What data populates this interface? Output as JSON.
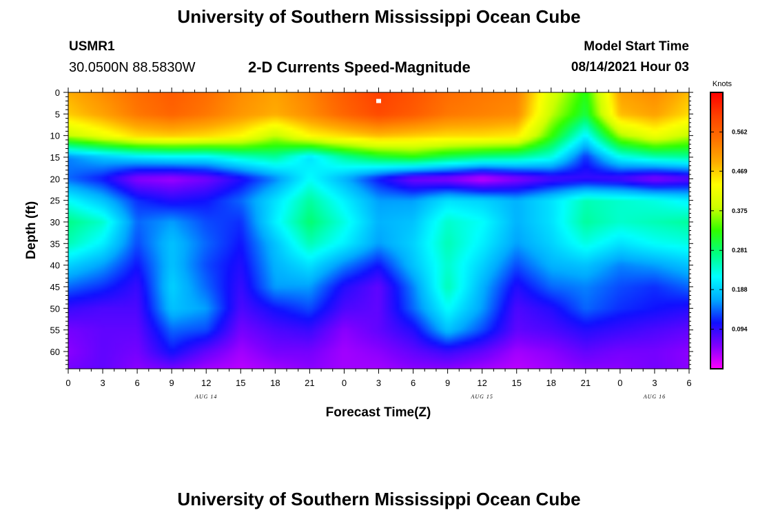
{
  "header": {
    "title": "University of Southern Mississippi Ocean Cube",
    "station_id": "USMR1",
    "station_coords": "30.0500N  88.5830W",
    "product_title": "2-D Currents Speed-Magnitude",
    "model_start_label": "Model Start Time",
    "model_start_value": "08/14/2021 Hour 03"
  },
  "footer": {
    "title": "University of Southern Mississippi Ocean Cube"
  },
  "chart_data": {
    "type": "heatmap",
    "xlabel": "Forecast Time(Z)",
    "ylabel": "Depth (ft)",
    "x_hours_range": [
      0,
      54
    ],
    "ylim": [
      0,
      64
    ],
    "y_inverted": true,
    "x_tick_labels": [
      "0",
      "3",
      "6",
      "9",
      "12",
      "15",
      "18",
      "21",
      "0",
      "3",
      "6",
      "9",
      "12",
      "15",
      "18",
      "21",
      "0",
      "3",
      "6"
    ],
    "y_tick_labels": [
      "0",
      "5",
      "10",
      "15",
      "20",
      "25",
      "30",
      "35",
      "40",
      "45",
      "50",
      "55",
      "60"
    ],
    "date_labels": [
      {
        "text": "AUG  14",
        "hour": 12
      },
      {
        "text": "AUG  15",
        "hour": 36
      },
      {
        "text": "AUG  16",
        "hour": 51
      }
    ],
    "marker": {
      "hour": 27,
      "depth": 2
    },
    "colorbar": {
      "unit_label": "Knots",
      "range": [
        0.0,
        0.656
      ],
      "tick_values": [
        "0.562",
        "0.469",
        "0.375",
        "0.281",
        "0.188",
        "0.094"
      ],
      "colors": [
        "#ff00ff",
        "#8000ff",
        "#1010ff",
        "#00aaff",
        "#00ffff",
        "#00ff80",
        "#30ff00",
        "#ccff00",
        "#ffff00",
        "#ffaa00",
        "#ff7000",
        "#ff4000",
        "#ff0000"
      ]
    },
    "grid": false,
    "depths_ft": [
      0,
      5,
      10,
      15,
      20,
      25,
      30,
      35,
      40,
      45,
      50,
      55,
      60,
      64
    ],
    "hours": [
      0,
      3,
      6,
      9,
      12,
      15,
      18,
      21,
      24,
      27,
      30,
      33,
      36,
      39,
      42,
      45,
      48,
      51,
      54
    ],
    "speed_knots": [
      [
        0.49,
        0.52,
        0.55,
        0.57,
        0.55,
        0.52,
        0.5,
        0.53,
        0.57,
        0.6,
        0.58,
        0.55,
        0.54,
        0.53,
        0.4,
        0.32,
        0.5,
        0.52,
        0.48
      ],
      [
        0.47,
        0.5,
        0.54,
        0.56,
        0.54,
        0.51,
        0.49,
        0.52,
        0.56,
        0.59,
        0.57,
        0.54,
        0.53,
        0.52,
        0.38,
        0.3,
        0.48,
        0.5,
        0.46
      ],
      [
        0.38,
        0.42,
        0.46,
        0.47,
        0.46,
        0.44,
        0.38,
        0.44,
        0.46,
        0.48,
        0.47,
        0.46,
        0.46,
        0.45,
        0.33,
        0.21,
        0.37,
        0.42,
        0.38
      ],
      [
        0.15,
        0.18,
        0.2,
        0.21,
        0.21,
        0.24,
        0.26,
        0.2,
        0.26,
        0.3,
        0.32,
        0.29,
        0.27,
        0.26,
        0.23,
        0.12,
        0.22,
        0.25,
        0.26
      ],
      [
        0.14,
        0.11,
        0.05,
        0.04,
        0.06,
        0.1,
        0.15,
        0.22,
        0.17,
        0.11,
        0.06,
        0.05,
        0.02,
        0.05,
        0.08,
        0.09,
        0.08,
        0.05,
        0.07
      ],
      [
        0.22,
        0.18,
        0.12,
        0.1,
        0.11,
        0.14,
        0.2,
        0.26,
        0.21,
        0.16,
        0.16,
        0.2,
        0.19,
        0.17,
        0.2,
        0.25,
        0.24,
        0.23,
        0.21
      ],
      [
        0.27,
        0.24,
        0.14,
        0.16,
        0.13,
        0.12,
        0.21,
        0.28,
        0.23,
        0.17,
        0.18,
        0.24,
        0.22,
        0.17,
        0.2,
        0.26,
        0.24,
        0.25,
        0.26
      ],
      [
        0.25,
        0.21,
        0.13,
        0.18,
        0.14,
        0.11,
        0.18,
        0.25,
        0.21,
        0.16,
        0.19,
        0.25,
        0.21,
        0.16,
        0.19,
        0.23,
        0.2,
        0.22,
        0.23
      ],
      [
        0.19,
        0.16,
        0.11,
        0.18,
        0.13,
        0.1,
        0.17,
        0.2,
        0.15,
        0.11,
        0.18,
        0.24,
        0.19,
        0.13,
        0.17,
        0.18,
        0.15,
        0.16,
        0.18
      ],
      [
        0.14,
        0.12,
        0.09,
        0.19,
        0.14,
        0.09,
        0.16,
        0.16,
        0.1,
        0.07,
        0.15,
        0.25,
        0.17,
        0.1,
        0.14,
        0.15,
        0.13,
        0.12,
        0.14
      ],
      [
        0.09,
        0.08,
        0.08,
        0.18,
        0.16,
        0.08,
        0.11,
        0.13,
        0.08,
        0.07,
        0.14,
        0.22,
        0.16,
        0.08,
        0.1,
        0.14,
        0.12,
        0.11,
        0.1
      ],
      [
        0.06,
        0.07,
        0.07,
        0.14,
        0.13,
        0.06,
        0.08,
        0.09,
        0.05,
        0.07,
        0.1,
        0.18,
        0.13,
        0.07,
        0.08,
        0.1,
        0.09,
        0.08,
        0.07
      ],
      [
        0.05,
        0.07,
        0.06,
        0.11,
        0.07,
        0.04,
        0.06,
        0.06,
        0.04,
        0.05,
        0.07,
        0.09,
        0.07,
        0.04,
        0.05,
        0.07,
        0.06,
        0.06,
        0.05
      ],
      [
        0.06,
        0.07,
        0.05,
        0.06,
        0.04,
        0.03,
        0.04,
        0.05,
        0.04,
        0.04,
        0.05,
        0.05,
        0.04,
        0.03,
        0.04,
        0.05,
        0.05,
        0.06,
        0.05
      ]
    ]
  }
}
